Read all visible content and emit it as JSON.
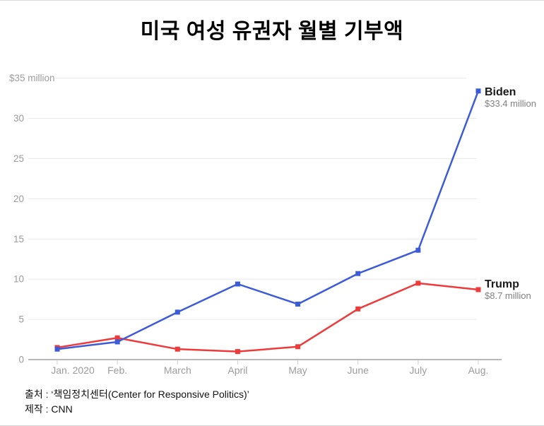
{
  "page": {
    "title": "미국 여성 유권자 월별 기부액",
    "source": "출처 : ‘책임정치센터(Center for Responsive Politics)’",
    "credit": "제작 : CNN"
  },
  "chart_data": {
    "type": "line",
    "title": "미국 여성 유권자 월별 기부액",
    "categories": [
      "Jan. 2020",
      "Feb.",
      "March",
      "April",
      "May",
      "June",
      "July",
      "Aug."
    ],
    "series": [
      {
        "name": "Biden",
        "color": "#3c5bd8",
        "values": [
          1.3,
          2.2,
          5.9,
          9.4,
          6.9,
          10.7,
          13.6,
          33.4
        ],
        "end_label": "$33.4 million"
      },
      {
        "name": "Trump",
        "color": "#ee3a3a",
        "values": [
          1.5,
          2.7,
          1.3,
          1.0,
          1.6,
          6.3,
          9.5,
          8.7
        ],
        "end_label": "$8.7 million"
      }
    ],
    "y_axis": {
      "top_label": "$35 million",
      "tick_values": [
        35,
        30,
        25,
        20,
        15,
        10,
        5,
        0
      ],
      "tick_labels": [
        "$35 million",
        "30",
        "25",
        "20",
        "15",
        "10",
        "5",
        "0"
      ],
      "ylim": [
        0,
        35
      ]
    },
    "x_axis": {
      "tick_labels": [
        "Jan. 2020",
        "Feb.",
        "March",
        "April",
        "May",
        "June",
        "July",
        "Aug."
      ]
    },
    "grid": true,
    "legend_position": "line-end-annotations"
  },
  "colors": {
    "biden": "#3c5bd8",
    "trump": "#ee3a3a",
    "gridline": "#e8e8e8",
    "axis_line": "#b8b8b8",
    "tick_mark": "#cfcfcf",
    "axis_label": "#9b9b9b",
    "annotation_name": "#1a1a1a",
    "annotation_value": "#808080"
  }
}
